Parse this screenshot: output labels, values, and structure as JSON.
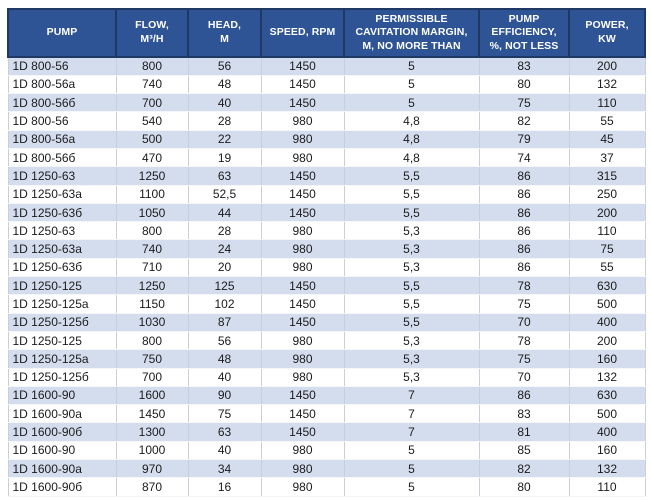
{
  "table": {
    "name": "pump-specifications",
    "columns": [
      {
        "label": "PUMP"
      },
      {
        "label": "FLOW,\nM³/H"
      },
      {
        "label": "HEAD,\nM"
      },
      {
        "label": "SPEED, RPM"
      },
      {
        "label": "PERMISSIBLE\nCAVITATION MARGIN,\nM, NO MORE THAN"
      },
      {
        "label": "PUMP\nEFFICIENCY,\n%, NOT LESS"
      },
      {
        "label": "POWER,\nKW"
      }
    ],
    "rows": [
      [
        "1D 800-56",
        "800",
        "56",
        "1450",
        "5",
        "83",
        "200"
      ],
      [
        "1D 800-56a",
        "740",
        "48",
        "1450",
        "5",
        "80",
        "132"
      ],
      [
        "1D 800-56б",
        "700",
        "40",
        "1450",
        "5",
        "75",
        "110"
      ],
      [
        "1D 800-56",
        "540",
        "28",
        "980",
        "4,8",
        "82",
        "55"
      ],
      [
        "1D 800-56a",
        "500",
        "22",
        "980",
        "4,8",
        "79",
        "45"
      ],
      [
        "1D 800-56б",
        "470",
        "19",
        "980",
        "4,8",
        "74",
        "37"
      ],
      [
        "1D 1250-63",
        "1250",
        "63",
        "1450",
        "5,5",
        "86",
        "315"
      ],
      [
        "1D 1250-63a",
        "1100",
        "52,5",
        "1450",
        "5,5",
        "86",
        "250"
      ],
      [
        "1D 1250-63б",
        "1050",
        "44",
        "1450",
        "5,5",
        "86",
        "200"
      ],
      [
        "1D 1250-63",
        "800",
        "28",
        "980",
        "5,3",
        "86",
        "110"
      ],
      [
        "1D 1250-63a",
        "740",
        "24",
        "980",
        "5,3",
        "86",
        "75"
      ],
      [
        "1D 1250-63б",
        "710",
        "20",
        "980",
        "5,3",
        "86",
        "55"
      ],
      [
        "1D 1250-125",
        "1250",
        "125",
        "1450",
        "5,5",
        "78",
        "630"
      ],
      [
        "1D 1250-125a",
        "1150",
        "102",
        "1450",
        "5,5",
        "75",
        "500"
      ],
      [
        "1D 1250-125б",
        "1030",
        "87",
        "1450",
        "5,5",
        "70",
        "400"
      ],
      [
        "1D 1250-125",
        "800",
        "56",
        "980",
        "5,3",
        "78",
        "200"
      ],
      [
        "1D 1250-125a",
        "750",
        "48",
        "980",
        "5,3",
        "75",
        "160"
      ],
      [
        "1D 1250-125б",
        "700",
        "40",
        "980",
        "5,3",
        "70",
        "132"
      ],
      [
        "1D 1600-90",
        "1600",
        "90",
        "1450",
        "7",
        "86",
        "630"
      ],
      [
        "1D 1600-90a",
        "1450",
        "75",
        "1450",
        "7",
        "83",
        "500"
      ],
      [
        "1D 1600-90б",
        "1300",
        "63",
        "1450",
        "7",
        "81",
        "400"
      ],
      [
        "1D 1600-90",
        "1000",
        "40",
        "980",
        "5",
        "85",
        "160"
      ],
      [
        "1D 1600-90a",
        "970",
        "34",
        "980",
        "5",
        "82",
        "132"
      ],
      [
        "1D 1600-90б",
        "870",
        "16",
        "980",
        "5",
        "80",
        "110"
      ]
    ]
  },
  "colors": {
    "header_bg": "#2E5496",
    "header_border": "#1F3864",
    "header_text": "#FFFFFF",
    "row_alt_bg": "#D4DDEE",
    "row_white_bg": "#FFFFFF",
    "cell_text": "#1B1B1B"
  }
}
